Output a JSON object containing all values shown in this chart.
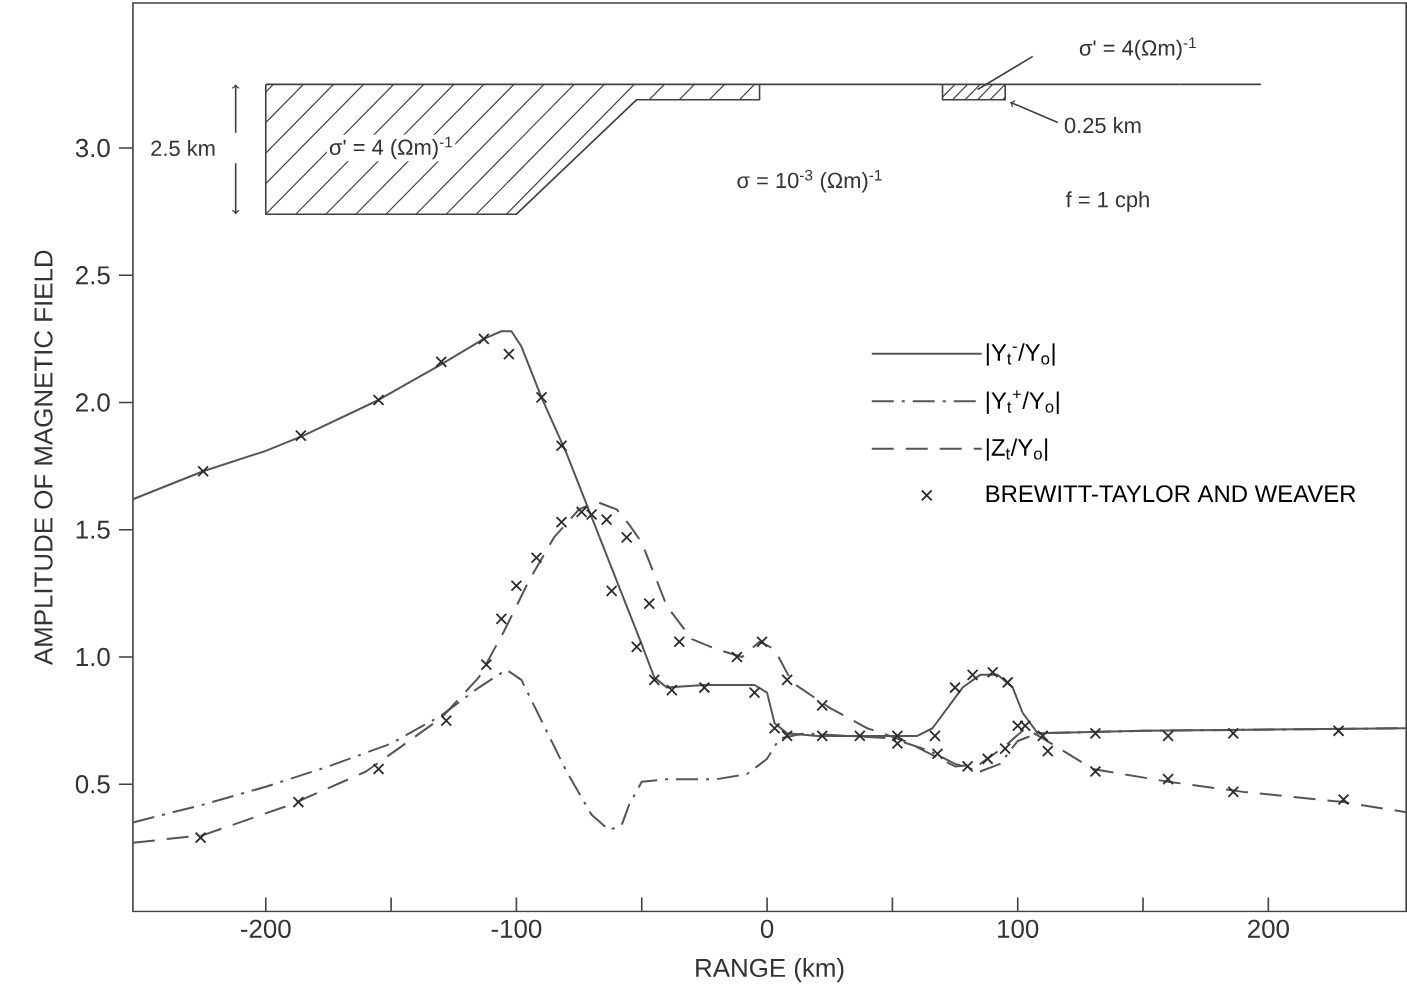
{
  "chart_data": {
    "type": "line",
    "xlabel": "RANGE  (km)",
    "ylabel": "AMPLITUDE OF MAGNETIC FIELD",
    "xlim": [
      -253,
      255
    ],
    "ylim": [
      0,
      3.57
    ],
    "xticks": [
      {
        "value": -200,
        "label": "-200"
      },
      {
        "value": -100,
        "label": "-100"
      },
      0,
      100,
      200
    ],
    "yticks": [
      0.5,
      {
        "value": 1.0,
        "label": "1.0"
      },
      1.5,
      {
        "value": 2.0,
        "label": "2.0"
      },
      2.5,
      {
        "value": 3.0,
        "label": "3.0"
      }
    ],
    "grid": false,
    "legend": "right",
    "annotations": [
      "σ' = 4 (Ωm)$^{-1}$",
      "2.5 km",
      "σ = 10$^{-3}$ (Ωm)$^{-1}$",
      "f = 1 cph",
      "σ' = 4(Ωm)$^{-1}$",
      "0.25 km"
    ],
    "series": [
      {
        "name": "|Y$_{t}$$^{-}$/Y$_{o}$|",
        "color": "#555555",
        "line_style": "solid",
        "marker": "none",
        "x": [
          -253,
          -225,
          -200,
          -185,
          -155,
          -130,
          -113,
          -106,
          -102,
          -98,
          -90,
          -80,
          -70,
          -60,
          -50,
          -45,
          -40,
          -25,
          -5,
          0,
          3,
          8,
          20,
          60,
          66,
          72,
          78,
          85,
          92,
          98,
          102,
          108,
          150,
          255
        ],
        "values": [
          1.62,
          1.73,
          1.81,
          1.87,
          2.01,
          2.15,
          2.25,
          2.28,
          2.28,
          2.22,
          2.02,
          1.8,
          1.55,
          1.3,
          1.05,
          0.92,
          0.88,
          0.89,
          0.89,
          0.86,
          0.74,
          0.7,
          0.69,
          0.69,
          0.72,
          0.8,
          0.88,
          0.93,
          0.93,
          0.88,
          0.78,
          0.7,
          0.71,
          0.72
        ]
      },
      {
        "name": "|Y$_{t}$$^{+}$/Y$_{o}$|",
        "color": "#555555",
        "line_style": "dashdot",
        "marker": "none",
        "x": [
          -253,
          -225,
          -200,
          -175,
          -150,
          -130,
          -115,
          -104,
          -98,
          -90,
          -80,
          -70,
          -63,
          -58,
          -55,
          -50,
          -40,
          -20,
          -8,
          0,
          5,
          15,
          50,
          65,
          75,
          85,
          93,
          100,
          108,
          150,
          255
        ],
        "values": [
          0.35,
          0.42,
          0.49,
          0.57,
          0.66,
          0.77,
          0.88,
          0.95,
          0.91,
          0.75,
          0.55,
          0.38,
          0.32,
          0.34,
          0.42,
          0.51,
          0.52,
          0.52,
          0.54,
          0.6,
          0.68,
          0.7,
          0.68,
          0.63,
          0.58,
          0.55,
          0.58,
          0.67,
          0.7,
          0.71,
          0.72
        ]
      },
      {
        "name": "|Z$_{t}$/Y$_{o}$|",
        "color": "#555555",
        "line_style": "dashed",
        "marker": "none",
        "x": [
          -253,
          -225,
          -190,
          -160,
          -130,
          -115,
          -105,
          -95,
          -85,
          -75,
          -68,
          -60,
          -55,
          -50,
          -40,
          -30,
          -20,
          -10,
          -3,
          3,
          10,
          25,
          40,
          55,
          65,
          75,
          85,
          95,
          103,
          110,
          130,
          160,
          190,
          230,
          255
        ],
        "values": [
          0.27,
          0.3,
          0.42,
          0.55,
          0.76,
          0.92,
          1.1,
          1.3,
          1.47,
          1.58,
          1.61,
          1.58,
          1.52,
          1.45,
          1.2,
          1.07,
          1.03,
          1.0,
          1.06,
          1.03,
          0.9,
          0.8,
          0.72,
          0.67,
          0.62,
          0.57,
          0.58,
          0.65,
          0.72,
          0.68,
          0.56,
          0.51,
          0.47,
          0.43,
          0.39
        ]
      },
      {
        "name": "BREWITT-TAYLOR AND WEAVER",
        "type": "scatter",
        "color": "#2b2b2b",
        "marker": "cross",
        "x": [
          -226,
          -225,
          -187,
          -186,
          -155,
          -155,
          -130,
          -128,
          -113,
          -112,
          -106,
          -103,
          -100,
          -92,
          -90,
          -82,
          -82,
          -74,
          -70,
          -64,
          -62,
          -56,
          -52,
          -47,
          -45,
          -38,
          -35,
          -25,
          -12,
          -5,
          -2,
          3,
          8,
          8,
          22,
          22,
          37,
          52,
          52,
          67,
          68,
          75,
          80,
          82,
          88,
          90,
          95,
          96,
          100,
          103,
          110,
          112,
          131,
          131,
          160,
          160,
          186,
          186,
          228,
          230
        ],
        "values": [
          0.29,
          1.73,
          0.43,
          1.87,
          2.01,
          0.56,
          2.16,
          0.75,
          2.25,
          0.97,
          1.15,
          2.19,
          1.28,
          1.39,
          2.02,
          1.83,
          1.53,
          1.57,
          1.56,
          1.54,
          1.26,
          1.47,
          1.04,
          1.21,
          0.91,
          0.87,
          1.06,
          0.88,
          1.0,
          0.86,
          1.06,
          0.72,
          0.69,
          0.91,
          0.69,
          0.81,
          0.69,
          0.69,
          0.66,
          0.69,
          0.62,
          0.88,
          0.57,
          0.93,
          0.6,
          0.94,
          0.64,
          0.9,
          0.73,
          0.73,
          0.69,
          0.63,
          0.7,
          0.55,
          0.69,
          0.52,
          0.7,
          0.47,
          0.71,
          0.44
        ]
      }
    ]
  }
}
